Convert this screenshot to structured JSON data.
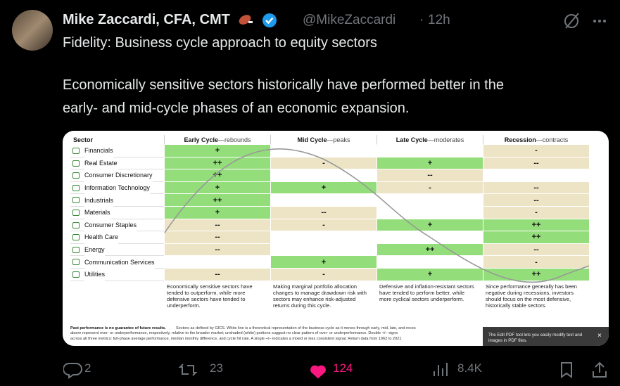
{
  "post": {
    "author": "Mike Zaccardi, CFA, CMT",
    "handle": "@MikeZaccardi",
    "separator": "·",
    "time": "12h",
    "text_lines": [
      "Fidelity: Business cycle approach to equity sectors",
      "Economically sensitive sectors historically have performed better in the",
      "early- and mid-cycle phases of an economic expansion."
    ]
  },
  "table": {
    "sector_header": "Sector",
    "columns": [
      {
        "phase": "Early Cycle",
        "note": "—rebounds"
      },
      {
        "phase": "Mid Cycle",
        "note": "—peaks"
      },
      {
        "phase": "Late Cycle",
        "note": "—moderates"
      },
      {
        "phase": "Recession",
        "note": "—contracts"
      }
    ],
    "rows": [
      [
        "Financials",
        "+",
        null,
        null,
        "-"
      ],
      [
        "Real Estate",
        "++",
        "-",
        "+",
        "--"
      ],
      [
        "Consumer Discretionary",
        "++",
        null,
        "--",
        null
      ],
      [
        "Information Technology",
        "+",
        "+",
        "-",
        "--"
      ],
      [
        "Industrials",
        "++",
        null,
        null,
        "--"
      ],
      [
        "Materials",
        "+",
        "--",
        null,
        "-"
      ],
      [
        "Consumer Staples",
        "--",
        "-",
        "+",
        "++"
      ],
      [
        "Health Care",
        "--",
        null,
        null,
        "++"
      ],
      [
        "Energy",
        "--",
        null,
        "++",
        "--"
      ],
      [
        "Communication Services",
        null,
        "+",
        null,
        "-"
      ],
      [
        "Utilities",
        "--",
        "-",
        "+",
        "++"
      ]
    ],
    "descriptions": [
      "Economically sensitive sectors have tended to outperform, while more defensive sectors have tended to underperform.",
      "Making marginal portfolio allocation changes to manage drawdown risk with sectors may enhance risk-adjusted returns during this cycle.",
      "Defensive and inflation-resistant sectors have tended to perform better, while more cyclical sectors underperform.",
      "Since performance generally has been negative during recessions, investors should focus on the most defensive, historically stable sectors."
    ],
    "footnote_bold": "Past performance is no guarantee of future results.",
    "footnote_lines": [
      "Sectors as defined by GICS. White line is a theoretical representation of the business cycle as it moves through early, mid, late, and reces",
      "above represent over- or underperformance, respectively, relative to the broader market; unshaded (white) portions suggest no clear pattern of over- or underperformance. Double +/– signs",
      "across all three metrics: full-phase average performance, median monthly difference, and cycle hit rate. A single +/– indicates a mixed or less consistent signal. Return data from 1962 to 2021"
    ]
  },
  "popup": {
    "text": "The Edit PDF tool lets you easily modify text and images in PDF files.",
    "close": "×"
  },
  "actions": {
    "replies": "2",
    "reposts": "23",
    "likes": "124",
    "views": "8.4K"
  }
}
